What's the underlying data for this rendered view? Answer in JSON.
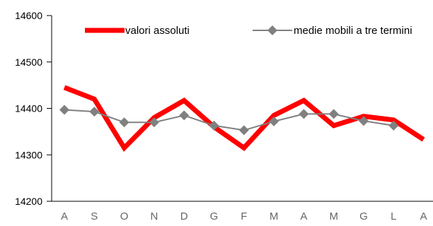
{
  "chart_data": {
    "type": "line",
    "categories": [
      "A",
      "S",
      "O",
      "N",
      "D",
      "G",
      "F",
      "M",
      "A",
      "M",
      "G",
      "L",
      "A"
    ],
    "y_ticks": [
      "14200",
      "14300",
      "14400",
      "14500",
      "14600"
    ],
    "ylim": [
      14200,
      14600
    ],
    "grid": false,
    "legend_position": "top",
    "series": [
      {
        "name": "valori assoluti",
        "color": "#ff0000",
        "values": [
          14445,
          14420,
          14315,
          14380,
          14417,
          14360,
          14315,
          14385,
          14417,
          14363,
          14383,
          14375,
          14333
        ]
      },
      {
        "name": "medie mobili a tre termini",
        "color": "#808080",
        "marker": "diamond",
        "values": [
          14397,
          14393,
          14370,
          14370,
          14385,
          14363,
          14353,
          14372,
          14388,
          14388,
          14373,
          14363,
          null
        ]
      }
    ]
  }
}
